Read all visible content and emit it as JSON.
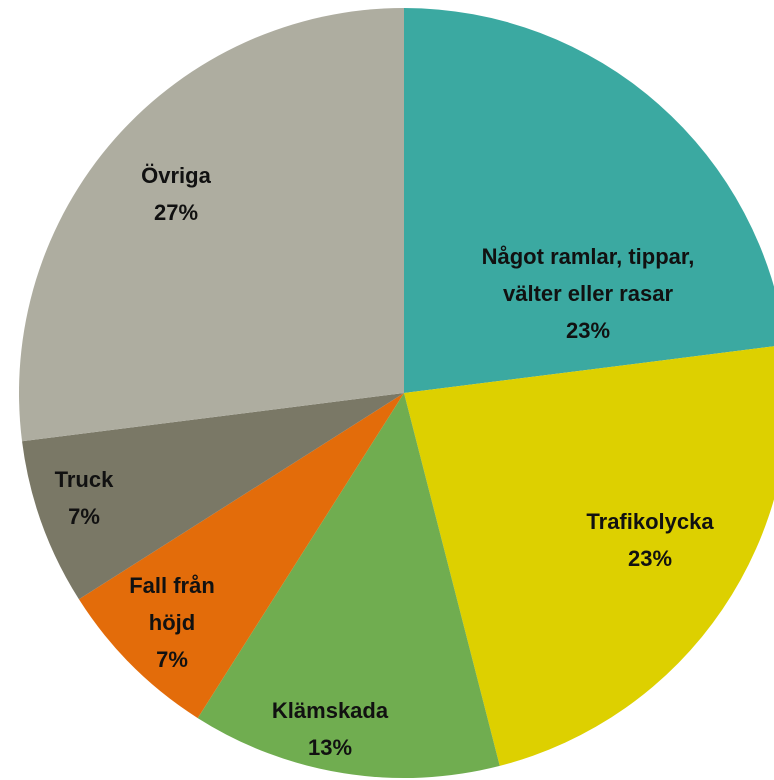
{
  "chart_data": {
    "type": "pie",
    "categories": [
      "Något ramlar, tippar,\nvälter eller rasar",
      "Trafikolycka",
      "Klämskada",
      "Fall från\nhöjd",
      "Truck",
      "Övriga"
    ],
    "values": [
      23,
      23,
      13,
      7,
      7,
      27
    ],
    "value_labels": [
      "23%",
      "23%",
      "13%",
      "7%",
      "7%",
      "27%"
    ],
    "colors": [
      "#3ba9a1",
      "#ddd000",
      "#70ad50",
      "#e36c0a",
      "#7a7866",
      "#aeada0"
    ]
  }
}
